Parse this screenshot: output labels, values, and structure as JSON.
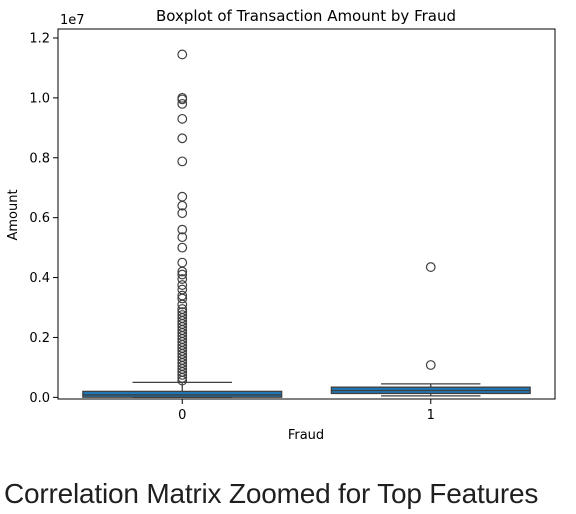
{
  "chart_data": {
    "type": "boxplot",
    "title": "Boxplot of Transaction Amount by Fraud",
    "xlabel": "Fraud",
    "ylabel": "Amount",
    "y_offset_label": "1e7",
    "ylim": [
      -55000,
      12300000
    ],
    "y_ticks": [
      0,
      2000000,
      4000000,
      6000000,
      8000000,
      10000000,
      12000000
    ],
    "y_tick_labels": [
      "0.0",
      "0.2",
      "0.4",
      "0.6",
      "0.8",
      "1.0",
      "1.2"
    ],
    "categories": [
      "0",
      "1"
    ],
    "box_color": "#1f77b4",
    "boxes": [
      {
        "category": "0",
        "whisker_low": 0,
        "q1": 5000,
        "median": 80000,
        "q3": 200000,
        "whisker_high": 500000,
        "outliers": [
          11450000,
          10000000,
          9950000,
          9800000,
          9300000,
          8650000,
          7880000,
          6700000,
          6400000,
          6150000,
          5600000,
          5350000,
          5000000,
          4500000,
          4200000,
          4100000,
          3950000,
          3750000,
          3600000,
          3400000,
          3300000,
          3100000,
          2950000,
          2850000,
          2750000,
          2650000,
          2550000,
          2450000,
          2350000,
          2250000,
          2150000,
          2050000,
          1950000,
          1850000,
          1750000,
          1650000,
          1550000,
          1450000,
          1350000,
          1250000,
          1150000,
          1050000,
          950000,
          850000,
          750000,
          650000,
          560000
        ]
      },
      {
        "category": "1",
        "whisker_low": 50000,
        "q1": 130000,
        "median": 230000,
        "q3": 340000,
        "whisker_high": 450000,
        "outliers": [
          4350000,
          1080000
        ]
      }
    ]
  },
  "section_heading": "Correlation Matrix Zoomed for Top Features"
}
